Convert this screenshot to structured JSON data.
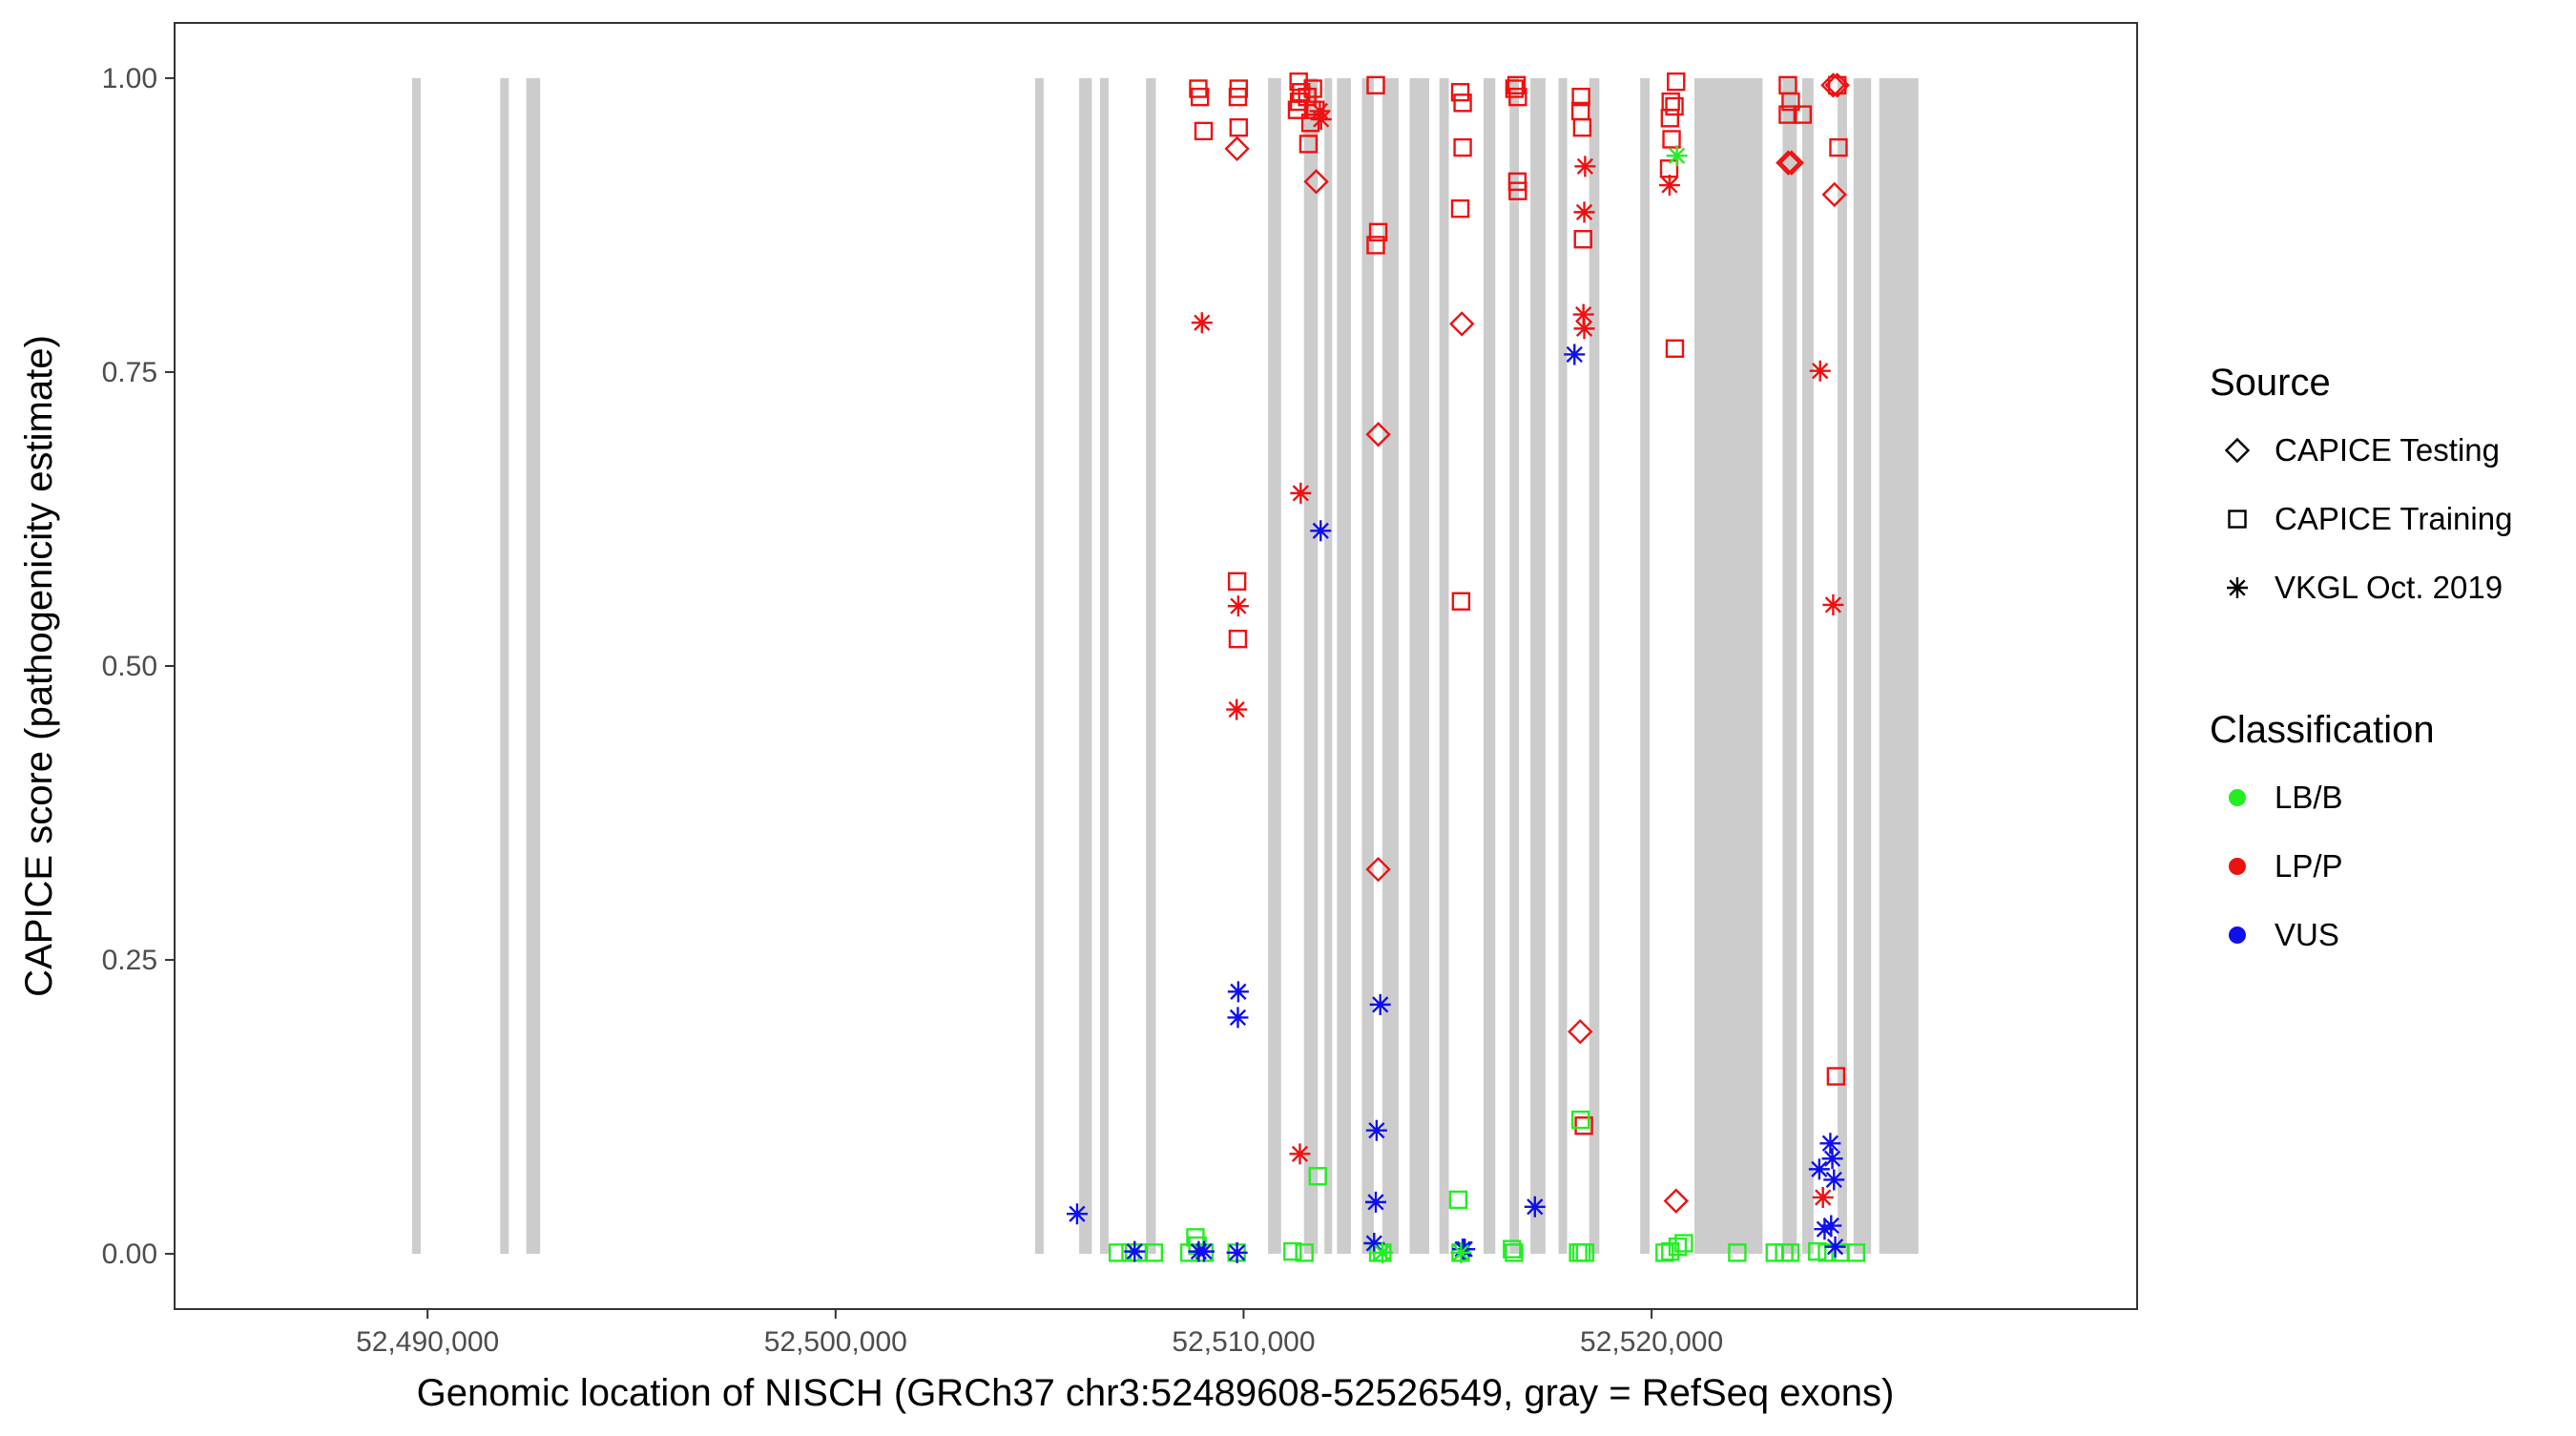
{
  "chart_data": {
    "type": "scatter",
    "xlabel": "Genomic location of NISCH (GRCh37 chr3:52489608-52526549, gray = RefSeq exons)",
    "ylabel": "CAPICE score (pathogenicity estimate)",
    "xlim": [
      52483800,
      52531900
    ],
    "ylim": [
      -0.047,
      1.047
    ],
    "xticks": [
      52490000,
      52500000,
      52510000,
      52520000
    ],
    "xtick_labels": [
      "52,490,000",
      "52,500,000",
      "52,510,000",
      "52,520,000"
    ],
    "yticks": [
      0,
      0.25,
      0.5,
      0.75,
      1.0
    ],
    "ytick_labels": [
      "0.00",
      "0.25",
      "0.50",
      "0.75",
      "1.00"
    ],
    "grid": false,
    "legend_position": "right",
    "legend": {
      "source_title": "Source",
      "source_items": [
        {
          "label": "CAPICE Testing",
          "shape": "diamond"
        },
        {
          "label": "CAPICE Training",
          "shape": "square"
        },
        {
          "label": "VKGL Oct. 2019",
          "shape": "asterisk"
        }
      ],
      "class_title": "Classification",
      "class_items": [
        {
          "label": "LB/B",
          "color": "#22ee22"
        },
        {
          "label": "LP/P",
          "color": "#ee1111"
        },
        {
          "label": "VUS",
          "color": "#1010ee"
        }
      ]
    },
    "exons": [
      [
        52489620,
        52489830
      ],
      [
        52491780,
        52491990
      ],
      [
        52492420,
        52492760
      ],
      [
        52504890,
        52505100
      ],
      [
        52505970,
        52506280
      ],
      [
        52506480,
        52506690
      ],
      [
        52507610,
        52507850
      ],
      [
        52510600,
        52510920
      ],
      [
        52511480,
        52511820
      ],
      [
        52511980,
        52512170
      ],
      [
        52512290,
        52512630
      ],
      [
        52512900,
        52513190
      ],
      [
        52513400,
        52513800
      ],
      [
        52514070,
        52514550
      ],
      [
        52514800,
        52515030
      ],
      [
        52515880,
        52516170
      ],
      [
        52516520,
        52516750
      ],
      [
        52517030,
        52517400
      ],
      [
        52517720,
        52517930
      ],
      [
        52518470,
        52518720
      ],
      [
        52519720,
        52519950
      ],
      [
        52521050,
        52522720
      ],
      [
        52523210,
        52523560
      ],
      [
        52523690,
        52523970
      ],
      [
        52524560,
        52524790
      ],
      [
        52524950,
        52525380
      ],
      [
        52525580,
        52526540
      ]
    ],
    "series": [
      {
        "source": "CAPICE Testing",
        "classification": "LP/P",
        "points": [
          [
            52509840,
            0.94
          ],
          [
            52511780,
            0.912
          ],
          [
            52513300,
            0.697
          ],
          [
            52513300,
            0.327
          ],
          [
            52515350,
            0.791
          ],
          [
            52518250,
            0.189
          ],
          [
            52520600,
            0.045
          ],
          [
            52523350,
            0.928
          ],
          [
            52523430,
            0.928
          ],
          [
            52524480,
            0.901
          ],
          [
            52524450,
            0.994
          ],
          [
            52524550,
            0.994
          ]
        ]
      },
      {
        "source": "CAPICE Training",
        "classification": "LP/P",
        "points": [
          [
            52508890,
            0.991
          ],
          [
            52508930,
            0.984
          ],
          [
            52509020,
            0.955
          ],
          [
            52509880,
            0.991
          ],
          [
            52509860,
            0.984
          ],
          [
            52509880,
            0.958
          ],
          [
            52509840,
            0.572
          ],
          [
            52509860,
            0.523
          ],
          [
            52511350,
            0.997
          ],
          [
            52511410,
            0.988
          ],
          [
            52511360,
            0.98
          ],
          [
            52511310,
            0.973
          ],
          [
            52511560,
            0.984
          ],
          [
            52511700,
            0.991
          ],
          [
            52511760,
            0.973
          ],
          [
            52511640,
            0.962
          ],
          [
            52511590,
            0.944
          ],
          [
            52513240,
            0.994
          ],
          [
            52513300,
            0.869
          ],
          [
            52513240,
            0.858
          ],
          [
            52515310,
            0.988
          ],
          [
            52515370,
            0.979
          ],
          [
            52515370,
            0.941
          ],
          [
            52515310,
            0.889
          ],
          [
            52515330,
            0.555
          ],
          [
            52516640,
            0.991
          ],
          [
            52516690,
            0.994
          ],
          [
            52516720,
            0.984
          ],
          [
            52516710,
            0.912
          ],
          [
            52516720,
            0.904
          ],
          [
            52518270,
            0.984
          ],
          [
            52518260,
            0.972
          ],
          [
            52518300,
            0.958
          ],
          [
            52518320,
            0.863
          ],
          [
            52518340,
            0.109
          ],
          [
            52520470,
            0.98
          ],
          [
            52520600,
            0.997
          ],
          [
            52520560,
            0.976
          ],
          [
            52520450,
            0.966
          ],
          [
            52520490,
            0.948
          ],
          [
            52520430,
            0.923
          ],
          [
            52520570,
            0.77
          ],
          [
            52523340,
            0.994
          ],
          [
            52523410,
            0.98
          ],
          [
            52523340,
            0.969
          ],
          [
            52523700,
            0.969
          ],
          [
            52524550,
            0.994
          ],
          [
            52524580,
            0.941
          ],
          [
            52524520,
            0.151
          ]
        ]
      },
      {
        "source": "CAPICE Training",
        "classification": "LB/B",
        "points": [
          [
            52506920,
            0.001
          ],
          [
            52507230,
            0.001
          ],
          [
            52507430,
            0.001
          ],
          [
            52507800,
            0.001
          ],
          [
            52508670,
            0.001
          ],
          [
            52508820,
            0.014
          ],
          [
            52508870,
            0.007
          ],
          [
            52509040,
            0.001
          ],
          [
            52509830,
            0.001
          ],
          [
            52511200,
            0.002
          ],
          [
            52511490,
            0.001
          ],
          [
            52511820,
            0.066
          ],
          [
            52513300,
            0.001
          ],
          [
            52513400,
            0.001
          ],
          [
            52515260,
            0.046
          ],
          [
            52515320,
            0.001
          ],
          [
            52516580,
            0.004
          ],
          [
            52516630,
            0.001
          ],
          [
            52518260,
            0.114
          ],
          [
            52518200,
            0.001
          ],
          [
            52518280,
            0.001
          ],
          [
            52518370,
            0.001
          ],
          [
            52520320,
            0.001
          ],
          [
            52520460,
            0.002
          ],
          [
            52520640,
            0.006
          ],
          [
            52520790,
            0.009
          ],
          [
            52522100,
            0.001
          ],
          [
            52523020,
            0.001
          ],
          [
            52523250,
            0.001
          ],
          [
            52523400,
            0.001
          ],
          [
            52524060,
            0.002
          ],
          [
            52524300,
            0.001
          ],
          [
            52524630,
            0.001
          ],
          [
            52525010,
            0.001
          ]
        ]
      },
      {
        "source": "VKGL Oct. 2019",
        "classification": "LP/P",
        "points": [
          [
            52508980,
            0.792
          ],
          [
            52509870,
            0.551
          ],
          [
            52509830,
            0.463
          ],
          [
            52511400,
            0.647
          ],
          [
            52511380,
            0.085
          ],
          [
            52511870,
            0.972
          ],
          [
            52511900,
            0.965
          ],
          [
            52518370,
            0.925
          ],
          [
            52518350,
            0.886
          ],
          [
            52518330,
            0.799
          ],
          [
            52518350,
            0.787
          ],
          [
            52520440,
            0.909
          ],
          [
            52524130,
            0.751
          ],
          [
            52524450,
            0.552
          ],
          [
            52524200,
            0.048
          ]
        ]
      },
      {
        "source": "VKGL Oct. 2019",
        "classification": "VUS",
        "points": [
          [
            52505920,
            0.034
          ],
          [
            52507330,
            0.002
          ],
          [
            52508900,
            0.002
          ],
          [
            52509030,
            0.002
          ],
          [
            52509840,
            0.001
          ],
          [
            52509870,
            0.223
          ],
          [
            52509860,
            0.201
          ],
          [
            52511890,
            0.615
          ],
          [
            52513350,
            0.212
          ],
          [
            52513260,
            0.105
          ],
          [
            52513240,
            0.044
          ],
          [
            52513200,
            0.009
          ],
          [
            52515370,
            0.004
          ],
          [
            52515420,
            0.004
          ],
          [
            52517140,
            0.04
          ],
          [
            52518110,
            0.765
          ],
          [
            52524110,
            0.072
          ],
          [
            52524380,
            0.094
          ],
          [
            52524430,
            0.081
          ],
          [
            52524470,
            0.063
          ],
          [
            52524400,
            0.024
          ],
          [
            52524240,
            0.021
          ],
          [
            52524500,
            0.006
          ]
        ]
      },
      {
        "source": "VKGL Oct. 2019",
        "classification": "LB/B",
        "points": [
          [
            52520620,
            0.934
          ],
          [
            52513400,
            0.001
          ],
          [
            52515330,
            0.001
          ]
        ]
      }
    ]
  }
}
